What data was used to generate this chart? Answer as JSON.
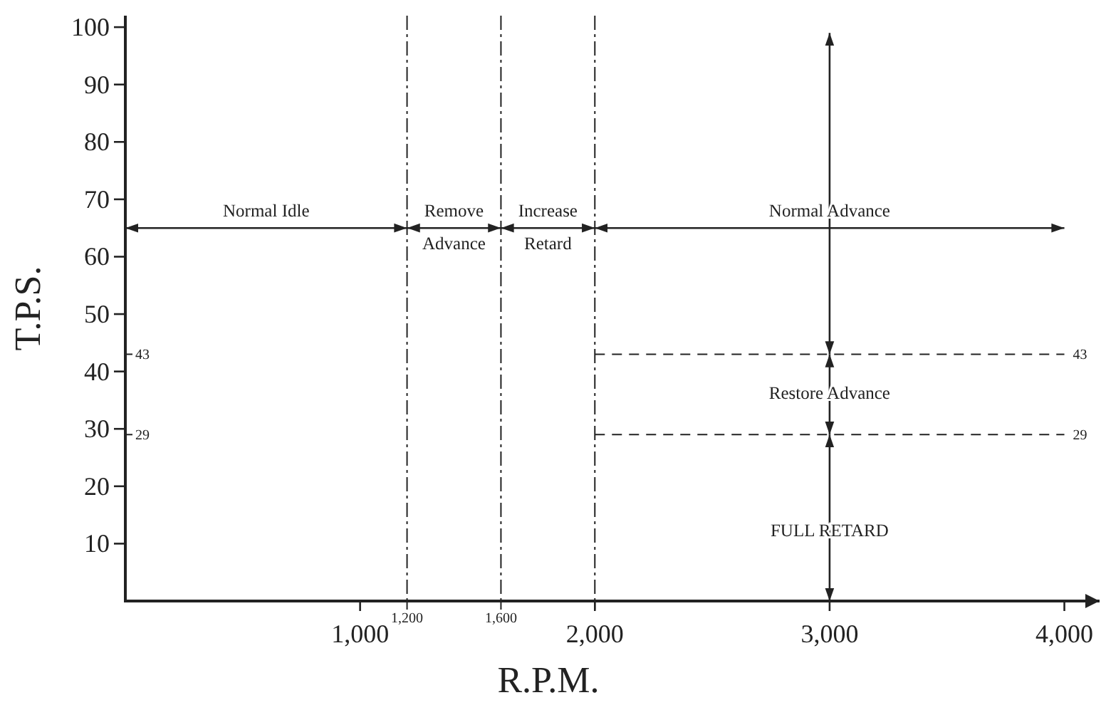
{
  "chart_data": {
    "type": "line",
    "xlabel": "R.P.M.",
    "ylabel": "T.P.S.",
    "xlim": [
      0,
      4150
    ],
    "ylim": [
      0,
      102
    ],
    "xticks": [
      {
        "value": 1000,
        "label": "1,000"
      },
      {
        "value": 2000,
        "label": "2,000"
      },
      {
        "value": 3000,
        "label": "3,000"
      },
      {
        "value": 4000,
        "label": "4,000"
      }
    ],
    "yticks": [
      10,
      20,
      30,
      40,
      50,
      60,
      70,
      80,
      90,
      100
    ],
    "grid": false,
    "marker": "none",
    "series": [
      {
        "color": "#222222",
        "x": [
          0,
          1200
        ],
        "values": [
          65,
          65
        ]
      },
      {
        "color": "#222222",
        "x": [
          1200,
          1600
        ],
        "values": [
          65,
          65
        ]
      },
      {
        "color": "#222222",
        "x": [
          1600,
          2000
        ],
        "values": [
          65,
          65
        ]
      },
      {
        "color": "#222222",
        "x": [
          2000,
          4000
        ],
        "values": [
          65,
          65
        ]
      },
      {
        "color": "#222222",
        "x": [
          3000,
          3000
        ],
        "values": [
          43,
          99
        ]
      },
      {
        "color": "#222222",
        "x": [
          3000,
          3000
        ],
        "values": [
          29,
          43
        ]
      },
      {
        "color": "#222222",
        "x": [
          3000,
          3000
        ],
        "values": [
          0,
          29
        ]
      }
    ],
    "ref_lines": [
      {
        "axis": "x",
        "value": 1200,
        "label": "1,200",
        "line_style": "dashdot"
      },
      {
        "axis": "x",
        "value": 1600,
        "label": "1,600",
        "line_style": "dashdot"
      },
      {
        "axis": "x",
        "value": 2000,
        "label": null,
        "line_style": "dashdot"
      },
      {
        "axis": "y",
        "value": 43,
        "label": "43",
        "line_style": "dashed"
      },
      {
        "axis": "y",
        "value": 29,
        "label": "29",
        "line_style": "dashed"
      }
    ],
    "annotations": [
      {
        "text": "Normal Idle",
        "x": 600,
        "y": 65
      },
      {
        "text": "Remove Advance",
        "x": 1400,
        "y": 65
      },
      {
        "text": "Increase Retard",
        "x": 1800,
        "y": 65
      },
      {
        "text": "Normal Advance",
        "x": 3000,
        "y": 65
      },
      {
        "text": "Restore Advance",
        "x": 3000,
        "y": 36
      },
      {
        "text": "FULL RETARD",
        "x": 3000,
        "y": 12
      }
    ]
  }
}
